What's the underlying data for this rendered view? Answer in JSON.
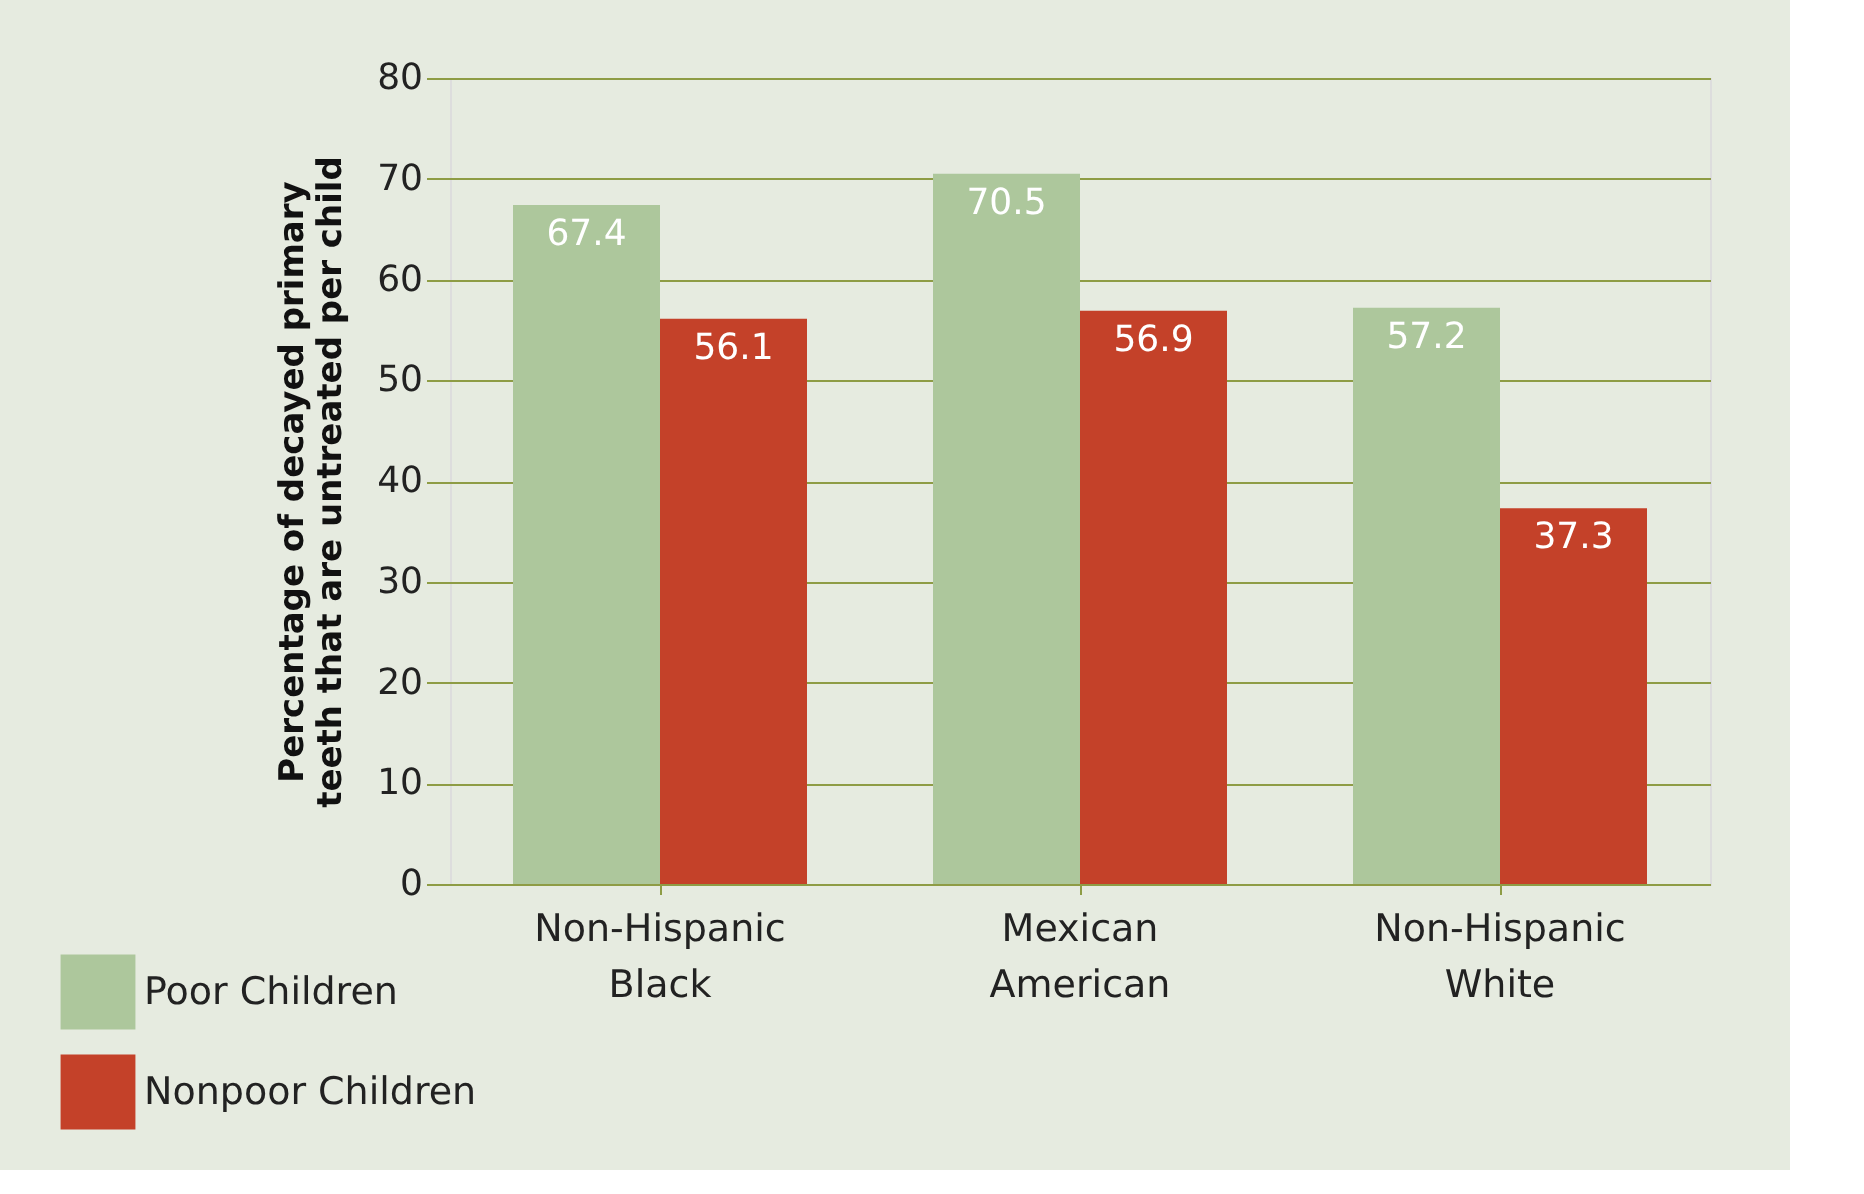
{
  "chart_data": {
    "type": "bar",
    "ylabel": "Percentage of decayed primary teeth that are untreated per child",
    "categories": [
      "Non-Hispanic Black",
      "Mexican American",
      "Non-Hispanic White"
    ],
    "series": [
      {
        "name": "Poor Children",
        "color": "#adc79c",
        "values": [
          67.4,
          70.5,
          57.2
        ]
      },
      {
        "name": "Nonpoor Children",
        "color": "#c44129",
        "values": [
          56.1,
          56.9,
          37.3
        ]
      }
    ],
    "ylim": [
      0,
      80
    ],
    "yticks": [
      0,
      10,
      20,
      30,
      40,
      50,
      60,
      70,
      80
    ],
    "grid": "y",
    "legend": "bottom left",
    "data_labels": true
  }
}
